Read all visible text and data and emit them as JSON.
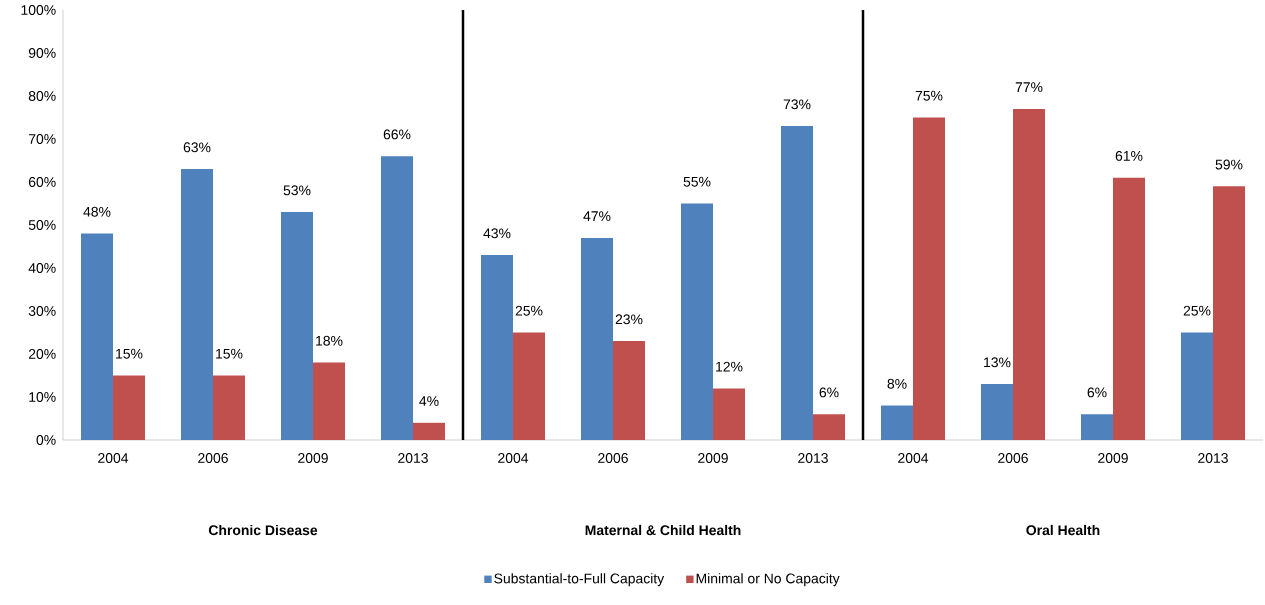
{
  "chart_data": {
    "type": "bar",
    "categories": [
      "2004",
      "2006",
      "2009",
      "2013",
      "2004",
      "2006",
      "2009",
      "2013",
      "2004",
      "2006",
      "2009",
      "2013"
    ],
    "series": [
      {
        "name": "Substantial-to-Full Capacity",
        "color": "#4f81bd",
        "values": [
          48,
          63,
          53,
          66,
          43,
          47,
          55,
          73,
          8,
          13,
          6,
          25
        ],
        "value_labels": [
          "48%",
          "63%",
          "53%",
          "66%",
          "43%",
          "47%",
          "55%",
          "73%",
          "8%",
          "13%",
          "6%",
          "25%"
        ]
      },
      {
        "name": "Minimal or No Capacity",
        "color": "#c0504d",
        "values": [
          15,
          15,
          18,
          4,
          25,
          23,
          12,
          6,
          75,
          77,
          61,
          59
        ],
        "value_labels": [
          "15%",
          "15%",
          "18%",
          "4%",
          "25%",
          "23%",
          "12%",
          "6%",
          "75%",
          "77%",
          "61%",
          "59%"
        ]
      }
    ],
    "ylim": [
      0,
      100
    ],
    "yticks": [
      {
        "value": 0,
        "label": "0%"
      },
      {
        "value": 10,
        "label": "10%"
      },
      {
        "value": 20,
        "label": "20%"
      },
      {
        "value": 30,
        "label": "30%"
      },
      {
        "value": 40,
        "label": "40%"
      },
      {
        "value": 50,
        "label": "50%"
      },
      {
        "value": 60,
        "label": "60%"
      },
      {
        "value": 70,
        "label": "70%"
      },
      {
        "value": 80,
        "label": "80%"
      },
      {
        "value": 90,
        "label": "90%"
      },
      {
        "value": 100,
        "label": "100%"
      }
    ],
    "annotations": [
      "**Chronic Disease**",
      "**Maternal & Child Health**",
      "**Oral Health**"
    ],
    "grid": false,
    "legend": "bottom"
  }
}
